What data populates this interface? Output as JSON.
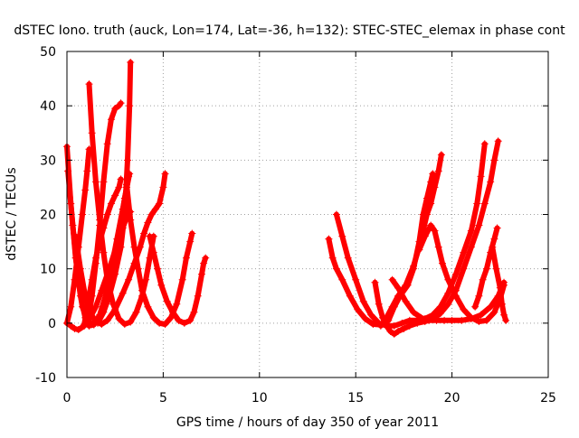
{
  "chart_data": {
    "type": "scatter",
    "title": "dSTEC Iono. truth (auck, Lon=174, Lat=-36, h=132): STEC-STEC_elemax in phase cont",
    "xlabel": "GPS time / hours of day 350 of year 2011",
    "ylabel": "dSTEC  / TECUs",
    "xlim": [
      0,
      25
    ],
    "ylim": [
      -10,
      50
    ],
    "xticks": [
      0,
      5,
      10,
      15,
      20,
      25
    ],
    "yticks": [
      -10,
      0,
      10,
      20,
      30,
      40,
      50
    ],
    "grid": true,
    "marker": "plus",
    "color": "#ff0000",
    "series": [
      {
        "points": [
          [
            0.0,
            32.5
          ],
          [
            0.2,
            22
          ],
          [
            0.45,
            12
          ],
          [
            0.7,
            5
          ],
          [
            0.95,
            1
          ],
          [
            1.15,
            -0.5
          ],
          [
            1.4,
            -0.3
          ],
          [
            1.7,
            1.5
          ],
          [
            2.0,
            5
          ],
          [
            2.3,
            10
          ],
          [
            2.6,
            15.5
          ],
          [
            2.9,
            21
          ],
          [
            3.1,
            25
          ],
          [
            3.2,
            27
          ]
        ]
      },
      {
        "points": [
          [
            0.05,
            28
          ],
          [
            0.3,
            18
          ],
          [
            0.55,
            9
          ],
          [
            0.8,
            3
          ],
          [
            1.1,
            0.2
          ],
          [
            1.4,
            -0.2
          ],
          [
            1.7,
            1
          ],
          [
            2.0,
            3.5
          ],
          [
            2.3,
            8.5
          ],
          [
            2.7,
            16
          ],
          [
            3.0,
            23
          ],
          [
            3.25,
            27.5
          ]
        ]
      },
      {
        "points": [
          [
            0.0,
            0
          ],
          [
            0.2,
            -0.5
          ],
          [
            0.4,
            -1
          ],
          [
            0.6,
            -1.2
          ],
          [
            0.9,
            -0.5
          ],
          [
            1.2,
            1
          ],
          [
            1.5,
            3
          ],
          [
            1.8,
            6
          ],
          [
            2.2,
            10
          ],
          [
            2.6,
            14.5
          ],
          [
            2.9,
            17.5
          ],
          [
            3.1,
            19.5
          ],
          [
            3.3,
            20.5
          ]
        ]
      },
      {
        "points": [
          [
            0.0,
            0
          ],
          [
            0.2,
            3
          ],
          [
            0.4,
            8
          ],
          [
            0.6,
            14
          ],
          [
            0.8,
            20
          ],
          [
            0.95,
            24.5
          ],
          [
            1.05,
            28
          ],
          [
            1.15,
            32
          ]
        ]
      },
      {
        "points": [
          [
            0.45,
            16
          ],
          [
            0.7,
            10
          ],
          [
            0.95,
            5
          ],
          [
            1.2,
            2
          ],
          [
            1.5,
            0.3
          ],
          [
            1.8,
            -0.2
          ],
          [
            2.1,
            0.5
          ],
          [
            2.5,
            2.5
          ],
          [
            2.9,
            5.5
          ],
          [
            3.2,
            8
          ],
          [
            3.5,
            11
          ],
          [
            3.8,
            14
          ],
          [
            4.0,
            16.5
          ],
          [
            4.2,
            18.5
          ],
          [
            4.4,
            20
          ],
          [
            4.6,
            21
          ],
          [
            4.8,
            22
          ],
          [
            5.0,
            25
          ],
          [
            5.1,
            27.5
          ]
        ]
      },
      {
        "points": [
          [
            0.9,
            -0.2
          ],
          [
            1.1,
            4
          ],
          [
            1.3,
            8
          ],
          [
            1.5,
            12
          ],
          [
            1.7,
            15
          ],
          [
            1.9,
            17.5
          ],
          [
            2.1,
            20
          ],
          [
            2.3,
            22
          ],
          [
            2.5,
            23.5
          ],
          [
            2.7,
            25
          ],
          [
            2.8,
            26.5
          ]
        ]
      },
      {
        "points": [
          [
            1.1,
            0.5
          ],
          [
            1.3,
            5
          ],
          [
            1.5,
            11
          ],
          [
            1.7,
            18
          ],
          [
            1.9,
            26
          ],
          [
            2.1,
            33
          ],
          [
            2.3,
            37.5
          ],
          [
            2.5,
            39.5
          ],
          [
            2.7,
            40
          ],
          [
            2.8,
            40.5
          ]
        ]
      },
      {
        "points": [
          [
            1.15,
            44
          ],
          [
            1.3,
            35
          ],
          [
            1.5,
            26
          ],
          [
            1.7,
            19
          ],
          [
            1.9,
            13
          ],
          [
            2.1,
            8
          ],
          [
            2.4,
            3.5
          ],
          [
            2.7,
            0.8
          ],
          [
            3.0,
            -0.2
          ],
          [
            3.3,
            0.2
          ],
          [
            3.6,
            2
          ],
          [
            3.9,
            5
          ],
          [
            4.1,
            8
          ],
          [
            4.3,
            12
          ],
          [
            4.5,
            16
          ]
        ]
      },
      {
        "points": [
          [
            1.6,
            0
          ],
          [
            1.9,
            2
          ],
          [
            2.2,
            5
          ],
          [
            2.5,
            9
          ],
          [
            2.8,
            14
          ],
          [
            3.0,
            20
          ],
          [
            3.15,
            30
          ],
          [
            3.25,
            40
          ],
          [
            3.3,
            48
          ]
        ]
      },
      {
        "points": [
          [
            3.1,
            25.5
          ],
          [
            3.3,
            19
          ],
          [
            3.5,
            14
          ],
          [
            3.7,
            10
          ],
          [
            3.9,
            6
          ],
          [
            4.2,
            3
          ],
          [
            4.5,
            1
          ],
          [
            4.8,
            0
          ],
          [
            5.1,
            -0.2
          ],
          [
            5.4,
            1
          ],
          [
            5.7,
            3.5
          ],
          [
            6.0,
            8
          ],
          [
            6.2,
            12
          ],
          [
            6.4,
            15
          ],
          [
            6.5,
            16.5
          ]
        ]
      },
      {
        "points": [
          [
            4.3,
            16
          ],
          [
            4.5,
            13
          ],
          [
            4.7,
            10
          ],
          [
            4.9,
            7
          ],
          [
            5.2,
            4
          ],
          [
            5.5,
            2
          ],
          [
            5.8,
            0.5
          ],
          [
            6.1,
            0
          ],
          [
            6.4,
            0.5
          ],
          [
            6.6,
            2
          ],
          [
            6.8,
            5
          ],
          [
            7.0,
            9
          ],
          [
            7.1,
            11
          ],
          [
            7.2,
            12
          ]
        ]
      },
      {
        "points": [
          [
            13.6,
            15.5
          ],
          [
            13.8,
            12
          ],
          [
            14.0,
            10
          ],
          [
            14.3,
            8
          ],
          [
            14.7,
            5
          ],
          [
            15.1,
            2.5
          ],
          [
            15.5,
            0.8
          ],
          [
            15.9,
            -0.2
          ],
          [
            16.3,
            -0.3
          ],
          [
            16.7,
            0.5
          ],
          [
            17.0,
            3
          ],
          [
            17.3,
            5
          ],
          [
            17.7,
            7
          ],
          [
            18.0,
            10
          ],
          [
            18.3,
            15
          ],
          [
            18.5,
            20
          ],
          [
            18.7,
            23
          ],
          [
            18.9,
            26
          ],
          [
            19.0,
            27.5
          ]
        ]
      },
      {
        "points": [
          [
            14.0,
            20
          ],
          [
            14.3,
            16
          ],
          [
            14.6,
            12
          ],
          [
            15.0,
            8
          ],
          [
            15.4,
            4
          ],
          [
            15.8,
            1.5
          ],
          [
            16.2,
            0
          ],
          [
            16.6,
            -0.5
          ],
          [
            17.0,
            -0.5
          ],
          [
            17.4,
            0
          ],
          [
            17.8,
            0.5
          ],
          [
            18.2,
            0.5
          ],
          [
            18.6,
            0.8
          ],
          [
            19.0,
            1.5
          ],
          [
            19.4,
            3
          ],
          [
            19.8,
            5.5
          ],
          [
            20.2,
            9
          ],
          [
            20.6,
            13
          ],
          [
            21.0,
            17
          ],
          [
            21.3,
            22
          ],
          [
            21.5,
            27
          ],
          [
            21.7,
            33
          ]
        ]
      },
      {
        "points": [
          [
            16.0,
            7.5
          ],
          [
            16.2,
            3.5
          ],
          [
            16.4,
            1
          ],
          [
            16.6,
            -0.5
          ],
          [
            16.8,
            -1.5
          ],
          [
            17.0,
            -2
          ],
          [
            17.2,
            -1.5
          ],
          [
            17.5,
            -1
          ],
          [
            17.8,
            -0.5
          ],
          [
            18.2,
            0
          ],
          [
            18.6,
            0.3
          ],
          [
            19.0,
            0.8
          ],
          [
            19.4,
            1.8
          ],
          [
            19.8,
            3.5
          ],
          [
            20.2,
            6
          ],
          [
            20.6,
            10
          ],
          [
            21.0,
            14
          ],
          [
            21.4,
            18
          ],
          [
            21.7,
            22
          ],
          [
            22.0,
            26
          ],
          [
            22.2,
            30
          ],
          [
            22.4,
            33.5
          ]
        ]
      },
      {
        "points": [
          [
            16.3,
            -0.5
          ],
          [
            16.6,
            1
          ],
          [
            16.9,
            3
          ],
          [
            17.2,
            5
          ],
          [
            17.6,
            7
          ],
          [
            18.0,
            10.5
          ],
          [
            18.3,
            14
          ],
          [
            18.5,
            17
          ],
          [
            18.7,
            20
          ],
          [
            18.9,
            22
          ],
          [
            19.1,
            25
          ],
          [
            19.3,
            28
          ],
          [
            19.45,
            31
          ]
        ]
      },
      {
        "points": [
          [
            16.9,
            8
          ],
          [
            17.2,
            6.5
          ],
          [
            17.6,
            4
          ],
          [
            18.0,
            2
          ],
          [
            18.4,
            1
          ],
          [
            18.8,
            0.5
          ],
          [
            19.2,
            0.5
          ],
          [
            19.6,
            0.5
          ],
          [
            20.0,
            0.5
          ],
          [
            20.5,
            0.5
          ],
          [
            21.0,
            0.8
          ],
          [
            21.5,
            1.5
          ],
          [
            22.0,
            3
          ],
          [
            22.4,
            5
          ],
          [
            22.7,
            7.5
          ]
        ]
      },
      {
        "points": [
          [
            18.3,
            13.5
          ],
          [
            18.6,
            16
          ],
          [
            18.9,
            18
          ],
          [
            19.1,
            17
          ],
          [
            19.3,
            14
          ],
          [
            19.5,
            11
          ],
          [
            19.8,
            8
          ],
          [
            20.2,
            5
          ],
          [
            20.6,
            2.5
          ],
          [
            21.0,
            1
          ],
          [
            21.4,
            0.3
          ],
          [
            21.8,
            0.5
          ],
          [
            22.2,
            2
          ],
          [
            22.5,
            4.5
          ],
          [
            22.7,
            7
          ]
        ]
      },
      {
        "points": [
          [
            21.2,
            3
          ],
          [
            21.4,
            5
          ],
          [
            21.6,
            8
          ],
          [
            21.8,
            10
          ],
          [
            22.0,
            13
          ],
          [
            22.2,
            15.5
          ],
          [
            22.35,
            17.5
          ]
        ]
      },
      {
        "points": [
          [
            22.1,
            14
          ],
          [
            22.3,
            10
          ],
          [
            22.5,
            6.5
          ],
          [
            22.6,
            3.5
          ],
          [
            22.7,
            1.5
          ],
          [
            22.8,
            0.5
          ]
        ]
      }
    ]
  }
}
